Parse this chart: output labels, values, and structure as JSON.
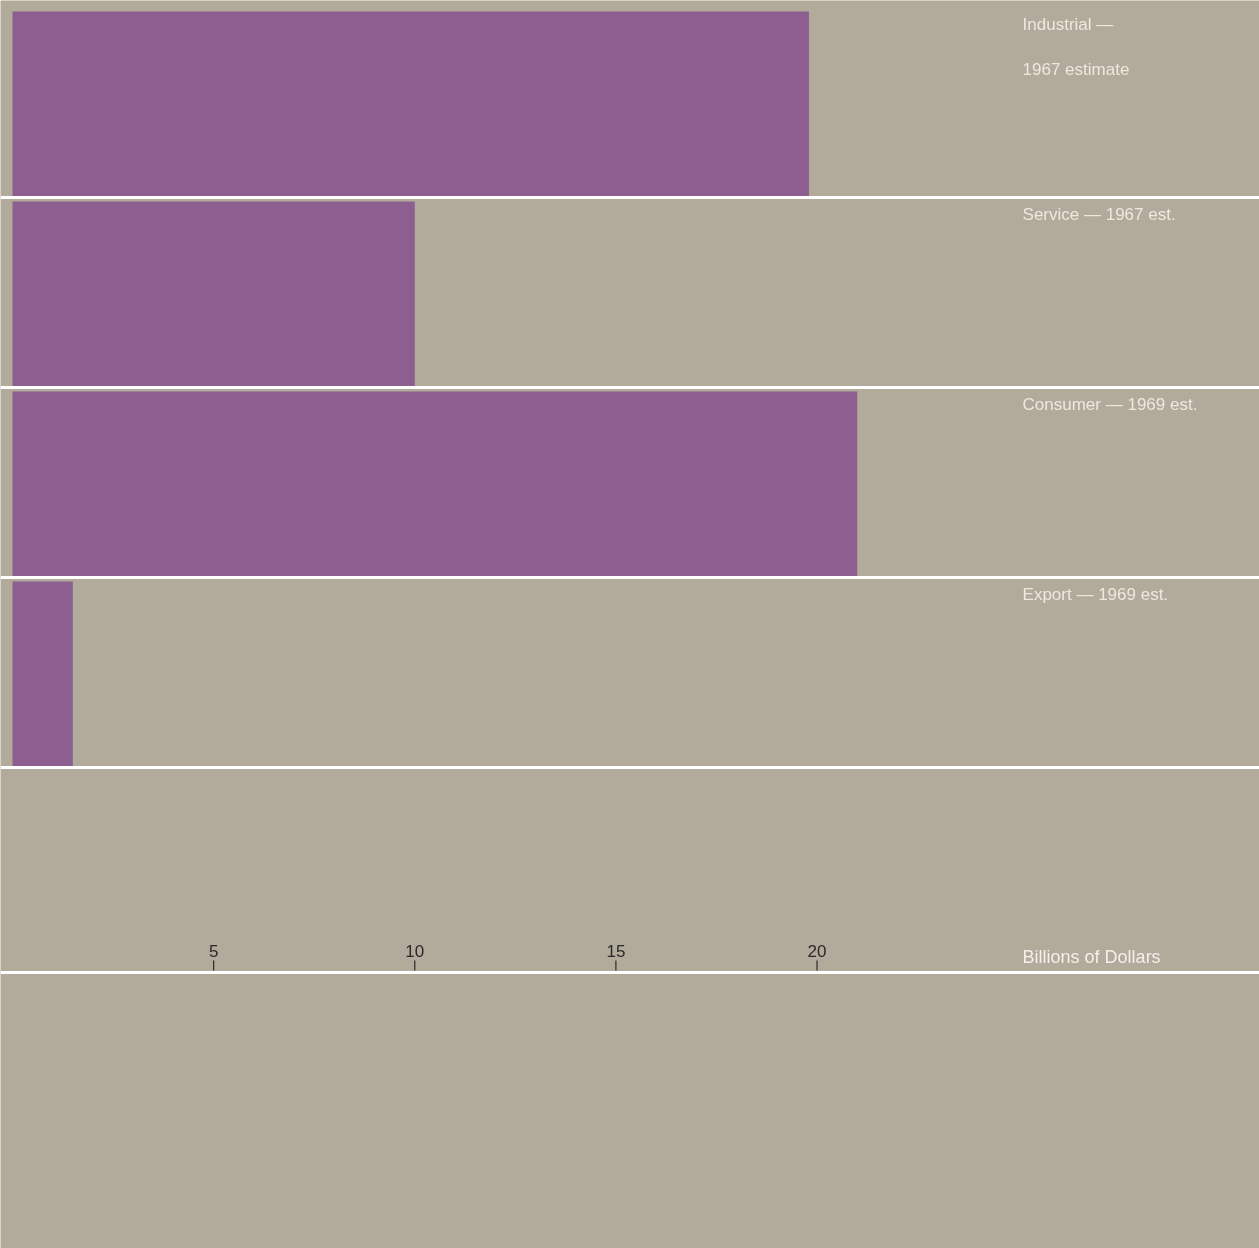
{
  "chart_data": {
    "type": "bar",
    "orientation": "horizontal",
    "xlabel": "Billions of Dollars",
    "categories": [
      "Industrial —\n\n1967 estimate",
      "Service — 1967 est.",
      "Consumer — 1969 est.",
      "Export — 1969 est."
    ],
    "values": [
      19.8,
      10,
      21,
      1.5
    ],
    "color": "#8c5f90",
    "xlim": [
      0,
      31
    ],
    "xticks": [
      5,
      10,
      15,
      20
    ],
    "grid": false
  }
}
